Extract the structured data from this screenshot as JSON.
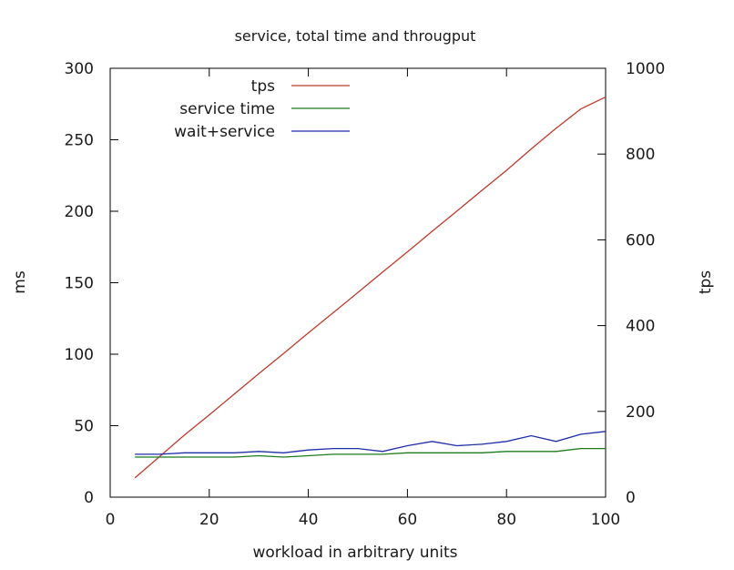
{
  "chart_data": {
    "type": "line",
    "title": "service, total time and througput",
    "xlabel": "workload in arbitrary units",
    "ylabel": "ms",
    "y2label": "tps",
    "xlim": [
      0,
      100
    ],
    "ylim": [
      0,
      300
    ],
    "y2lim": [
      0,
      1000
    ],
    "xticks": [
      "0",
      "20",
      "40",
      "60",
      "80",
      "100"
    ],
    "yticks": [
      "0",
      "50",
      "100",
      "150",
      "200",
      "250",
      "300"
    ],
    "y2ticks": [
      "0",
      "200",
      "400",
      "600",
      "800",
      "1000"
    ],
    "grid": false,
    "legend_position": "top-left",
    "series": [
      {
        "name": "tps",
        "axis": "right",
        "color": "#c0392b",
        "x": [
          5,
          10,
          15,
          20,
          25,
          30,
          35,
          40,
          45,
          50,
          55,
          60,
          65,
          70,
          75,
          80,
          85,
          90,
          95,
          100
        ],
        "y": [
          45,
          95,
          145,
          192,
          240,
          288,
          335,
          383,
          430,
          477,
          525,
          572,
          620,
          667,
          715,
          762,
          812,
          860,
          905,
          933
        ]
      },
      {
        "name": "service time",
        "axis": "left",
        "color": "#1e7b1e",
        "x": [
          5,
          10,
          15,
          20,
          25,
          30,
          35,
          40,
          45,
          50,
          55,
          60,
          65,
          70,
          75,
          80,
          85,
          90,
          95,
          100
        ],
        "y": [
          28,
          28,
          28,
          28,
          28,
          29,
          28,
          29,
          30,
          30,
          30,
          31,
          31,
          31,
          31,
          32,
          32,
          32,
          34,
          34
        ]
      },
      {
        "name": "wait+service",
        "axis": "left",
        "color": "#1f2fa8",
        "x": [
          5,
          10,
          15,
          20,
          25,
          30,
          35,
          40,
          45,
          50,
          55,
          60,
          65,
          70,
          75,
          80,
          85,
          90,
          95,
          100
        ],
        "y": [
          30,
          30,
          31,
          31,
          31,
          32,
          31,
          33,
          34,
          34,
          32,
          36,
          39,
          36,
          37,
          39,
          43,
          39,
          44,
          46
        ]
      }
    ]
  }
}
